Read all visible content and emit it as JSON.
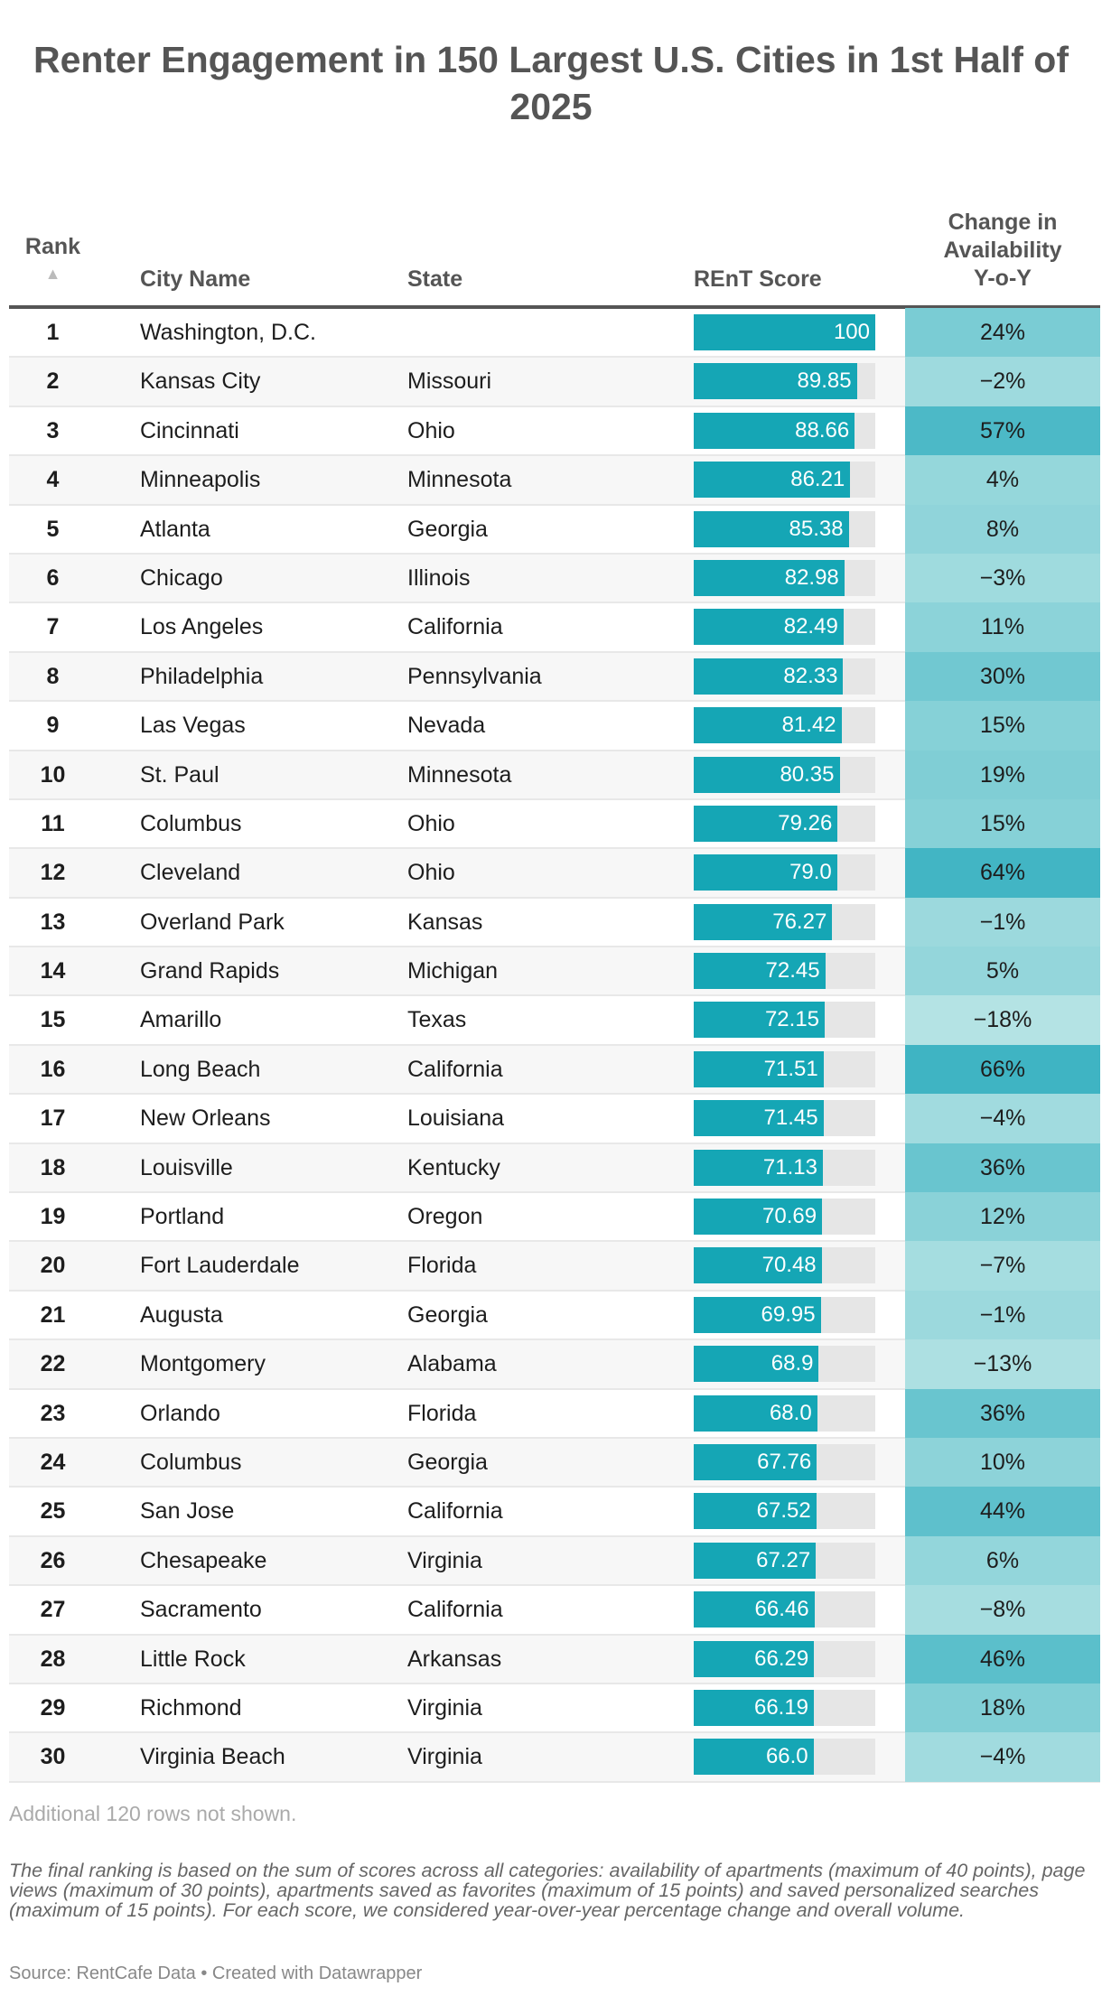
{
  "title": "Renter Engagement in 150 Largest U.S. Cities in 1st Half of 2025",
  "headers": {
    "rank": "Rank",
    "sort_icon": "▲",
    "city": "City Name",
    "state": "State",
    "score": "REnT Score",
    "change": "Change in Availability Y-o-Y"
  },
  "colors": {
    "bar": "#15a6b5",
    "bar_bg": "#e6e6e6",
    "change_low": "#b4e3e4",
    "change_high": "#3fb4c3"
  },
  "chart_data": {
    "type": "table",
    "score_range": [
      0,
      100
    ],
    "rows": [
      {
        "rank": "1",
        "city": "Washington, D.C.",
        "state": "",
        "score": "100",
        "change": "24%",
        "change_value": 24
      },
      {
        "rank": "2",
        "city": "Kansas City",
        "state": "Missouri",
        "score": "89.85",
        "change": "-2%",
        "change_value": -2
      },
      {
        "rank": "3",
        "city": "Cincinnati",
        "state": "Ohio",
        "score": "88.66",
        "change": "57%",
        "change_value": 57
      },
      {
        "rank": "4",
        "city": "Minneapolis",
        "state": "Minnesota",
        "score": "86.21",
        "change": "4%",
        "change_value": 4
      },
      {
        "rank": "5",
        "city": "Atlanta",
        "state": "Georgia",
        "score": "85.38",
        "change": "8%",
        "change_value": 8
      },
      {
        "rank": "6",
        "city": "Chicago",
        "state": "Illinois",
        "score": "82.98",
        "change": "-3%",
        "change_value": -3
      },
      {
        "rank": "7",
        "city": "Los Angeles",
        "state": "California",
        "score": "82.49",
        "change": "11%",
        "change_value": 11
      },
      {
        "rank": "8",
        "city": "Philadelphia",
        "state": "Pennsylvania",
        "score": "82.33",
        "change": "30%",
        "change_value": 30
      },
      {
        "rank": "9",
        "city": "Las Vegas",
        "state": "Nevada",
        "score": "81.42",
        "change": "15%",
        "change_value": 15
      },
      {
        "rank": "10",
        "city": "St. Paul",
        "state": "Minnesota",
        "score": "80.35",
        "change": "19%",
        "change_value": 19
      },
      {
        "rank": "11",
        "city": "Columbus",
        "state": "Ohio",
        "score": "79.26",
        "change": "15%",
        "change_value": 15
      },
      {
        "rank": "12",
        "city": "Cleveland",
        "state": "Ohio",
        "score": "79.0",
        "change": "64%",
        "change_value": 64
      },
      {
        "rank": "13",
        "city": "Overland Park",
        "state": "Kansas",
        "score": "76.27",
        "change": "-1%",
        "change_value": -1
      },
      {
        "rank": "14",
        "city": "Grand Rapids",
        "state": "Michigan",
        "score": "72.45",
        "change": "5%",
        "change_value": 5
      },
      {
        "rank": "15",
        "city": "Amarillo",
        "state": "Texas",
        "score": "72.15",
        "change": "-18%",
        "change_value": -18
      },
      {
        "rank": "16",
        "city": "Long Beach",
        "state": "California",
        "score": "71.51",
        "change": "66%",
        "change_value": 66
      },
      {
        "rank": "17",
        "city": "New Orleans",
        "state": "Louisiana",
        "score": "71.45",
        "change": "-4%",
        "change_value": -4
      },
      {
        "rank": "18",
        "city": "Louisville",
        "state": "Kentucky",
        "score": "71.13",
        "change": "36%",
        "change_value": 36
      },
      {
        "rank": "19",
        "city": "Portland",
        "state": "Oregon",
        "score": "70.69",
        "change": "12%",
        "change_value": 12
      },
      {
        "rank": "20",
        "city": "Fort Lauderdale",
        "state": "Florida",
        "score": "70.48",
        "change": "-7%",
        "change_value": -7
      },
      {
        "rank": "21",
        "city": "Augusta",
        "state": "Georgia",
        "score": "69.95",
        "change": "-1%",
        "change_value": -1
      },
      {
        "rank": "22",
        "city": "Montgomery",
        "state": "Alabama",
        "score": "68.9",
        "change": "-13%",
        "change_value": -13
      },
      {
        "rank": "23",
        "city": "Orlando",
        "state": "Florida",
        "score": "68.0",
        "change": "36%",
        "change_value": 36
      },
      {
        "rank": "24",
        "city": "Columbus",
        "state": "Georgia",
        "score": "67.76",
        "change": "10%",
        "change_value": 10
      },
      {
        "rank": "25",
        "city": "San Jose",
        "state": "California",
        "score": "67.52",
        "change": "44%",
        "change_value": 44
      },
      {
        "rank": "26",
        "city": "Chesapeake",
        "state": "Virginia",
        "score": "67.27",
        "change": "6%",
        "change_value": 6
      },
      {
        "rank": "27",
        "city": "Sacramento",
        "state": "California",
        "score": "66.46",
        "change": "-8%",
        "change_value": -8
      },
      {
        "rank": "28",
        "city": "Little Rock",
        "state": "Arkansas",
        "score": "66.29",
        "change": "46%",
        "change_value": 46
      },
      {
        "rank": "29",
        "city": "Richmond",
        "state": "Virginia",
        "score": "66.19",
        "change": "18%",
        "change_value": 18
      },
      {
        "rank": "30",
        "city": "Virginia Beach",
        "state": "Virginia",
        "score": "66.0",
        "change": "-4%",
        "change_value": -4
      }
    ]
  },
  "more_rows": "Additional 120 rows not shown.",
  "note": "The final ranking is based on the sum of scores across all categories: availability of apartments (maximum of 40 points), page views (maximum of 30 points), apartments saved as favorites (maximum of 15 points) and saved personalized searches (maximum of 15 points). For each score, we considered year-over-year percentage change and overall volume.",
  "source": "Source: RentCafe Data • Created with Datawrapper"
}
